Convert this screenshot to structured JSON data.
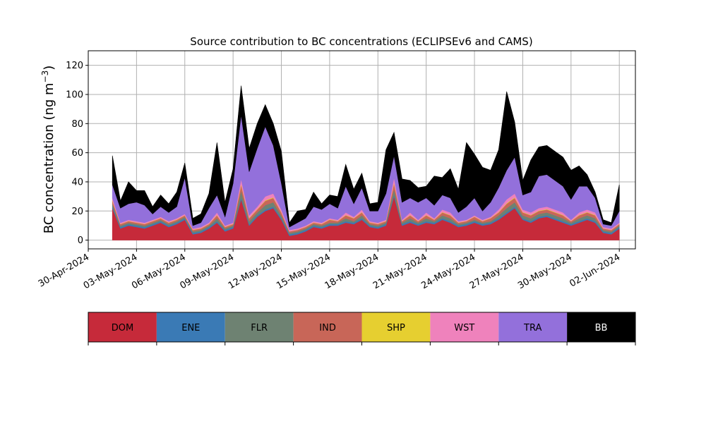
{
  "chart_data": {
    "type": "area",
    "stacked": true,
    "title": "Source contribution to BC concentrations (ECLIPSEv6 and CAMS)",
    "ylabel": "BC concentration (ng m",
    "ylabel_superscript": "−3",
    "ylabel_close": ")",
    "ylim": [
      -6,
      130
    ],
    "yticks": [
      0,
      20,
      40,
      60,
      80,
      100,
      120
    ],
    "xlim": [
      "2024-04-30T00:00",
      "2024-06-03T00:00"
    ],
    "xticks": [
      "2024-04-30",
      "2024-05-03",
      "2024-05-06",
      "2024-05-09",
      "2024-05-12",
      "2024-05-15",
      "2024-05-18",
      "2024-05-21",
      "2024-05-24",
      "2024-05-27",
      "2024-05-30",
      "2024-06-02"
    ],
    "xtick_labels": [
      "30-Apr-2024",
      "03-May-2024",
      "06-May-2024",
      "09-May-2024",
      "12-May-2024",
      "15-May-2024",
      "18-May-2024",
      "21-May-2024",
      "24-May-2024",
      "27-May-2024",
      "30-May-2024",
      "02-Jun-2024"
    ],
    "grid": true,
    "x": [
      "2024-05-01T12:00",
      "2024-05-02T00:00",
      "2024-05-02T12:00",
      "2024-05-03T00:00",
      "2024-05-03T12:00",
      "2024-05-04T00:00",
      "2024-05-04T12:00",
      "2024-05-05T00:00",
      "2024-05-05T12:00",
      "2024-05-06T00:00",
      "2024-05-06T12:00",
      "2024-05-07T00:00",
      "2024-05-07T12:00",
      "2024-05-08T00:00",
      "2024-05-08T12:00",
      "2024-05-09T00:00",
      "2024-05-09T12:00",
      "2024-05-10T00:00",
      "2024-05-10T12:00",
      "2024-05-11T00:00",
      "2024-05-11T12:00",
      "2024-05-12T00:00",
      "2024-05-12T12:00",
      "2024-05-13T00:00",
      "2024-05-13T12:00",
      "2024-05-14T00:00",
      "2024-05-14T12:00",
      "2024-05-15T00:00",
      "2024-05-15T12:00",
      "2024-05-16T00:00",
      "2024-05-16T12:00",
      "2024-05-17T00:00",
      "2024-05-17T12:00",
      "2024-05-18T00:00",
      "2024-05-18T12:00",
      "2024-05-19T00:00",
      "2024-05-19T12:00",
      "2024-05-20T00:00",
      "2024-05-20T12:00",
      "2024-05-21T00:00",
      "2024-05-21T12:00",
      "2024-05-22T00:00",
      "2024-05-22T12:00",
      "2024-05-23T00:00",
      "2024-05-23T12:00",
      "2024-05-24T00:00",
      "2024-05-24T12:00",
      "2024-05-25T00:00",
      "2024-05-25T12:00",
      "2024-05-26T00:00",
      "2024-05-26T12:00",
      "2024-05-27T00:00",
      "2024-05-27T12:00",
      "2024-05-28T00:00",
      "2024-05-28T12:00",
      "2024-05-29T00:00",
      "2024-05-29T12:00",
      "2024-05-30T00:00",
      "2024-05-30T12:00",
      "2024-05-31T00:00",
      "2024-05-31T12:00",
      "2024-06-01T00:00",
      "2024-06-01T12:00",
      "2024-06-02T00:00"
    ],
    "series": [
      {
        "name": "DOM",
        "color": "#c62a3a",
        "values": [
          22,
          8,
          10,
          9,
          8,
          10,
          12,
          9,
          11,
          14,
          4,
          5,
          8,
          12,
          6,
          8,
          28,
          10,
          16,
          20,
          22,
          14,
          3,
          4,
          6,
          9,
          8,
          10,
          10,
          12,
          11,
          14,
          9,
          8,
          10,
          30,
          10,
          12,
          10,
          12,
          11,
          14,
          12,
          9,
          10,
          12,
          10,
          11,
          14,
          18,
          22,
          14,
          12,
          15,
          16,
          14,
          12,
          10,
          12,
          14,
          12,
          5,
          4,
          8
        ]
      },
      {
        "name": "ENE",
        "color": "#3a7ab5",
        "values": [
          1,
          1,
          1,
          1,
          1,
          1,
          1,
          1,
          1,
          1,
          1,
          1,
          1,
          1,
          1,
          1,
          1,
          1,
          1,
          1,
          1,
          1,
          1,
          1,
          1,
          1,
          1,
          1,
          1,
          1,
          1,
          1,
          1,
          1,
          1,
          1,
          1,
          1,
          1,
          1,
          1,
          1,
          1,
          1,
          1,
          1,
          1,
          1,
          1,
          1,
          1,
          1,
          1,
          1,
          1,
          1,
          1,
          1,
          1,
          1,
          1,
          1,
          1,
          1
        ]
      },
      {
        "name": "FLR",
        "color": "#6e8272",
        "values": [
          2,
          1,
          1,
          1,
          1,
          1,
          1,
          1,
          1,
          1,
          1,
          1,
          1,
          2,
          1,
          1,
          5,
          2,
          2,
          3,
          3,
          2,
          1,
          1,
          1,
          1,
          1,
          1,
          1,
          2,
          1,
          2,
          1,
          1,
          1,
          4,
          1,
          2,
          1,
          2,
          1,
          2,
          2,
          1,
          1,
          1,
          1,
          1,
          2,
          3,
          3,
          2,
          2,
          2,
          2,
          2,
          2,
          1,
          2,
          2,
          2,
          1,
          1,
          1
        ]
      },
      {
        "name": "IND",
        "color": "#c86658",
        "values": [
          2,
          1,
          1,
          1,
          1,
          1,
          1,
          1,
          1,
          1,
          1,
          1,
          1,
          2,
          1,
          1,
          4,
          2,
          2,
          3,
          3,
          2,
          1,
          1,
          1,
          1,
          1,
          2,
          1,
          2,
          2,
          2,
          1,
          1,
          1,
          4,
          1,
          2,
          1,
          2,
          1,
          2,
          2,
          1,
          1,
          2,
          1,
          2,
          2,
          3,
          3,
          2,
          2,
          2,
          2,
          2,
          2,
          1,
          2,
          2,
          2,
          1,
          1,
          1
        ]
      },
      {
        "name": "SHP",
        "color": "#e6cf30",
        "values": [
          0.4,
          0.2,
          0.2,
          0.2,
          0.2,
          0.2,
          0.2,
          0.2,
          0.2,
          0.2,
          0.2,
          0.2,
          0.2,
          0.3,
          0.2,
          0.2,
          0.6,
          0.3,
          0.3,
          0.4,
          0.4,
          0.3,
          0.1,
          0.1,
          0.2,
          0.2,
          0.2,
          0.2,
          0.2,
          0.3,
          0.2,
          0.3,
          0.2,
          0.2,
          0.2,
          0.6,
          0.2,
          0.3,
          0.2,
          0.3,
          0.2,
          0.3,
          0.3,
          0.2,
          0.2,
          0.2,
          0.2,
          0.2,
          0.3,
          0.4,
          0.4,
          0.3,
          0.3,
          0.3,
          0.3,
          0.3,
          0.3,
          0.2,
          0.3,
          0.3,
          0.3,
          0.1,
          0.1,
          0.2
        ]
      },
      {
        "name": "WST",
        "color": "#ef82bc",
        "values": [
          1.6,
          0.8,
          0.8,
          0.8,
          0.8,
          0.8,
          0.8,
          0.8,
          0.8,
          0.8,
          0.8,
          0.8,
          0.8,
          1.7,
          0.8,
          0.8,
          3.4,
          1.7,
          1.7,
          2.6,
          2.6,
          1.7,
          0.9,
          0.9,
          0.8,
          0.8,
          0.8,
          0.8,
          0.8,
          1.7,
          0.8,
          1.7,
          0.8,
          0.8,
          0.8,
          3.4,
          0.8,
          1.7,
          0.8,
          1.7,
          0.8,
          1.7,
          1.7,
          0.8,
          0.8,
          0.8,
          0.8,
          0.8,
          1.7,
          2.6,
          2.6,
          1.7,
          1.7,
          1.7,
          1.7,
          1.7,
          1.7,
          0.8,
          1.7,
          1.7,
          1.7,
          0.9,
          0.9,
          0.8
        ]
      },
      {
        "name": "TRA",
        "color": "#9370db",
        "values": [
          9,
          10,
          11,
          13,
          12,
          4,
          7,
          6,
          8,
          25,
          2,
          3,
          10,
          12,
          6,
          27,
          44,
          30,
          40,
          48,
          33,
          18,
          2,
          4,
          5,
          10,
          9,
          10,
          8,
          18,
          9,
          15,
          7,
          8,
          18,
          15,
          12,
          10,
          12,
          10,
          9,
          10,
          10,
          6,
          9,
          12,
          6,
          10,
          15,
          20,
          25,
          10,
          14,
          22,
          22,
          20,
          18,
          14,
          18,
          16,
          10,
          2,
          2,
          8
        ]
      },
      {
        "name": "BB",
        "color": "#000000",
        "values": [
          20,
          5,
          15,
          8,
          10,
          5,
          8,
          6,
          10,
          10,
          5,
          6,
          10,
          36,
          10,
          10,
          20,
          16,
          17,
          15,
          15,
          22,
          3,
          8,
          6,
          10,
          4,
          6,
          8,
          15,
          10,
          10,
          5,
          6,
          30,
          16,
          16,
          12,
          10,
          8,
          20,
          12,
          20,
          16,
          44,
          30,
          30,
          22,
          26,
          54,
          24,
          10,
          22,
          20,
          20,
          20,
          20,
          20,
          14,
          8,
          4,
          3,
          2,
          18
        ]
      }
    ],
    "legend_placement": "bottom",
    "legend_entries": [
      "DOM",
      "ENE",
      "FLR",
      "IND",
      "SHP",
      "WST",
      "TRA",
      "BB"
    ],
    "legend_text_colors": [
      "#000000",
      "#000000",
      "#000000",
      "#000000",
      "#000000",
      "#000000",
      "#000000",
      "#ffffff"
    ]
  }
}
